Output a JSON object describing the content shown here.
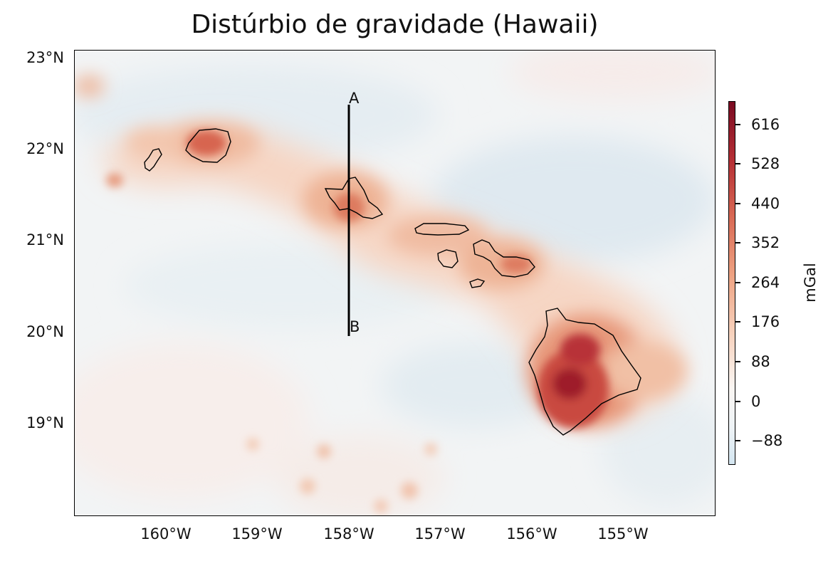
{
  "title": "Distúrbio de gravidade (Hawaii)",
  "map": {
    "lon_range": [
      -161.1,
      -154.1
    ],
    "lat_range": [
      18.0,
      23.1
    ],
    "lat_ticks": [
      "23°N",
      "22°N",
      "21°N",
      "20°N",
      "19°N"
    ],
    "lon_ticks": [
      "160°W",
      "159°W",
      "158°W",
      "157°W",
      "156°W",
      "155°W"
    ],
    "profile": {
      "start_label": "A",
      "end_label": "B",
      "lon": -158.0,
      "lat_start": 22.45,
      "lat_end": 20.0
    },
    "islands": [
      "Kauai",
      "Niihau",
      "Oahu",
      "Molokai",
      "Lanai",
      "Maui",
      "Kahoolawe",
      "Hawaii"
    ]
  },
  "colorbar": {
    "unit": "mGal",
    "ticks": [
      "616",
      "528",
      "440",
      "352",
      "264",
      "176",
      "88",
      "0",
      "−88"
    ],
    "colormap": "RdBu_r",
    "colors": {
      "low": "#d4e6f1",
      "zero": "#f7f7f7",
      "high": "#67001f"
    }
  }
}
